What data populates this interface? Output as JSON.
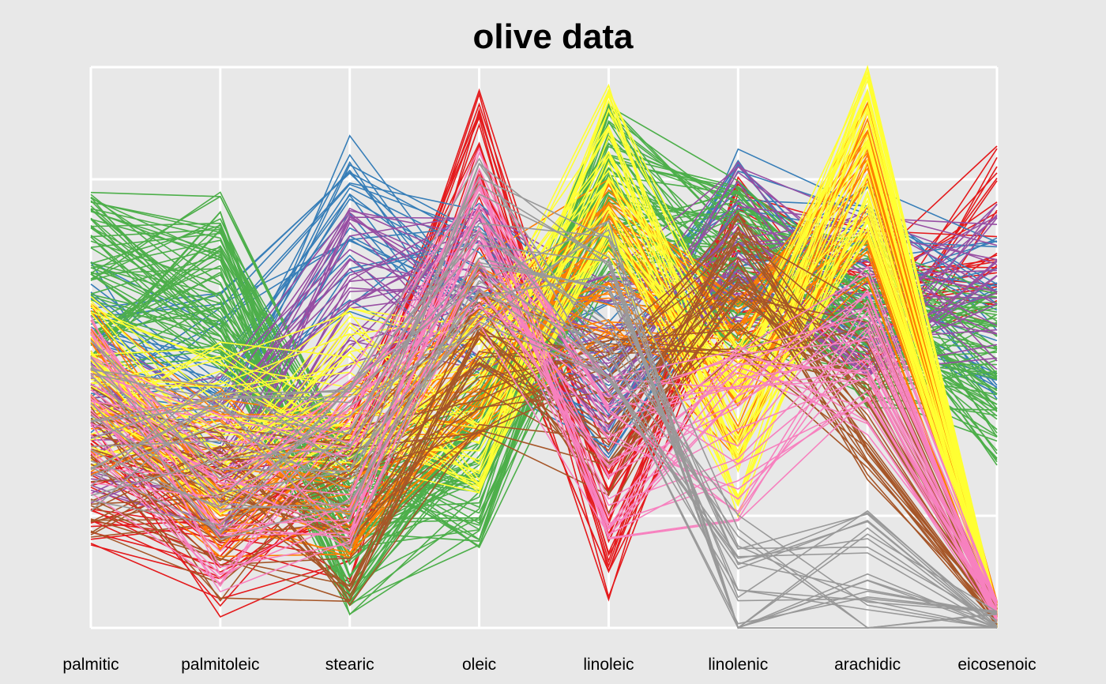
{
  "chart_data": {
    "type": "line",
    "subtype": "parallel-coordinates",
    "title": "olive data",
    "axes": [
      "palmitic",
      "palmitoleic",
      "stearic",
      "oleic",
      "linoleic",
      "linolenic",
      "arachidic",
      "eicosenoic"
    ],
    "y_range": [
      0,
      1
    ],
    "grid": true,
    "gridlines_at": [
      0,
      0.2,
      0.8,
      1.0
    ],
    "legend": "none",
    "background_color": "#e8e8e8",
    "grid_color": "#ffffff",
    "groups": [
      {
        "color": "#e41a1c",
        "count": 25,
        "profile": [
          0.28,
          0.17,
          0.24,
          0.8,
          0.18,
          0.68,
          0.55,
          0.7
        ]
      },
      {
        "color": "#377eb8",
        "count": 25,
        "profile": [
          0.5,
          0.44,
          0.72,
          0.6,
          0.45,
          0.7,
          0.65,
          0.55
        ]
      },
      {
        "color": "#4daf4a",
        "count": 70,
        "profile": [
          0.62,
          0.62,
          0.18,
          0.3,
          0.78,
          0.65,
          0.55,
          0.45
        ]
      },
      {
        "color": "#984ea3",
        "count": 30,
        "profile": [
          0.38,
          0.3,
          0.6,
          0.62,
          0.48,
          0.68,
          0.6,
          0.62
        ]
      },
      {
        "color": "#ff7f00",
        "count": 40,
        "profile": [
          0.42,
          0.28,
          0.28,
          0.5,
          0.65,
          0.45,
          0.78,
          0.03
        ]
      },
      {
        "color": "#ffff33",
        "count": 40,
        "profile": [
          0.44,
          0.36,
          0.42,
          0.4,
          0.82,
          0.35,
          0.85,
          0.02
        ]
      },
      {
        "color": "#a65628",
        "count": 30,
        "profile": [
          0.3,
          0.2,
          0.2,
          0.48,
          0.36,
          0.62,
          0.42,
          0.02
        ]
      },
      {
        "color": "#f781bf",
        "count": 30,
        "profile": [
          0.4,
          0.22,
          0.3,
          0.7,
          0.3,
          0.35,
          0.5,
          0.03
        ]
      },
      {
        "color": "#999999",
        "count": 25,
        "profile": [
          0.36,
          0.3,
          0.28,
          0.68,
          0.58,
          0.05,
          0.05,
          0.01
        ]
      }
    ]
  }
}
